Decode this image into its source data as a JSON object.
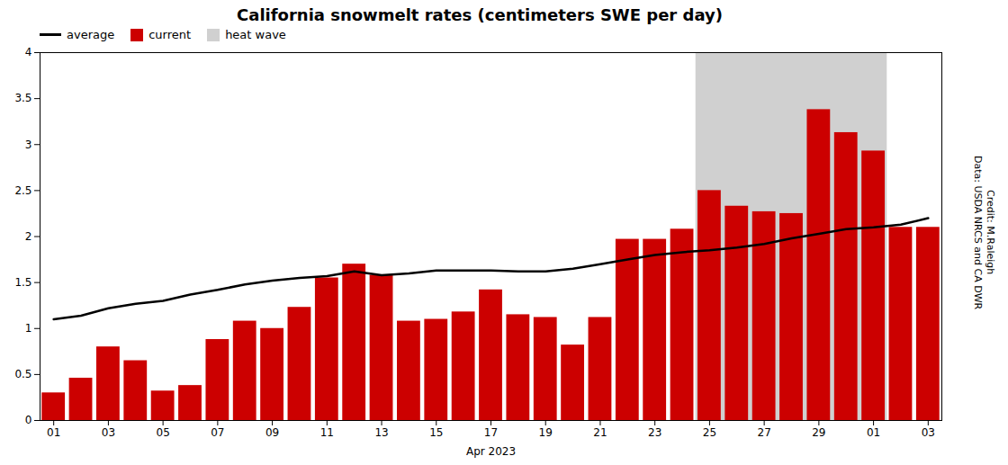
{
  "chart_data": {
    "type": "bar",
    "title": "California snowmelt rates (centimeters SWE per day)",
    "xlabel": "Apr 2023",
    "categories": [
      "01",
      null,
      "03",
      null,
      "05",
      null,
      "07",
      null,
      "09",
      null,
      "11",
      null,
      "13",
      null,
      "15",
      null,
      "17",
      null,
      "19",
      null,
      "21",
      null,
      "23",
      null,
      "25",
      null,
      "27",
      null,
      "29",
      null,
      "01",
      null,
      "03"
    ],
    "series": [
      {
        "name": "average",
        "type": "line",
        "color": "#000000",
        "values": [
          1.1,
          1.14,
          1.22,
          1.27,
          1.3,
          1.37,
          1.42,
          1.48,
          1.52,
          1.55,
          1.57,
          1.62,
          1.58,
          1.6,
          1.63,
          1.63,
          1.63,
          1.62,
          1.62,
          1.65,
          1.7,
          1.75,
          1.8,
          1.83,
          1.85,
          1.88,
          1.92,
          1.98,
          2.03,
          2.08,
          2.1,
          2.13,
          2.2
        ]
      },
      {
        "name": "current",
        "type": "bar",
        "color": "#cc0000",
        "values": [
          0.3,
          0.46,
          0.8,
          0.65,
          0.32,
          0.38,
          0.88,
          1.08,
          1.0,
          1.23,
          1.55,
          1.7,
          1.58,
          1.08,
          1.1,
          1.18,
          1.42,
          1.15,
          1.12,
          0.82,
          1.12,
          1.97,
          1.97,
          2.08,
          2.5,
          2.33,
          2.27,
          2.25,
          3.38,
          3.13,
          2.93,
          2.1,
          2.1
        ]
      }
    ],
    "spans": [
      {
        "name": "heat wave",
        "from": 24,
        "to": 30,
        "color": "#d0d0d0"
      }
    ],
    "ylim": [
      0,
      4
    ],
    "yticks": [
      0,
      0.5,
      1,
      1.5,
      2,
      2.5,
      3,
      3.5,
      4
    ],
    "grid": false,
    "legend": "upper left",
    "annotations": [
      "Credit: M.Raleigh\nData: USDA NRCS and CA DWR"
    ]
  }
}
